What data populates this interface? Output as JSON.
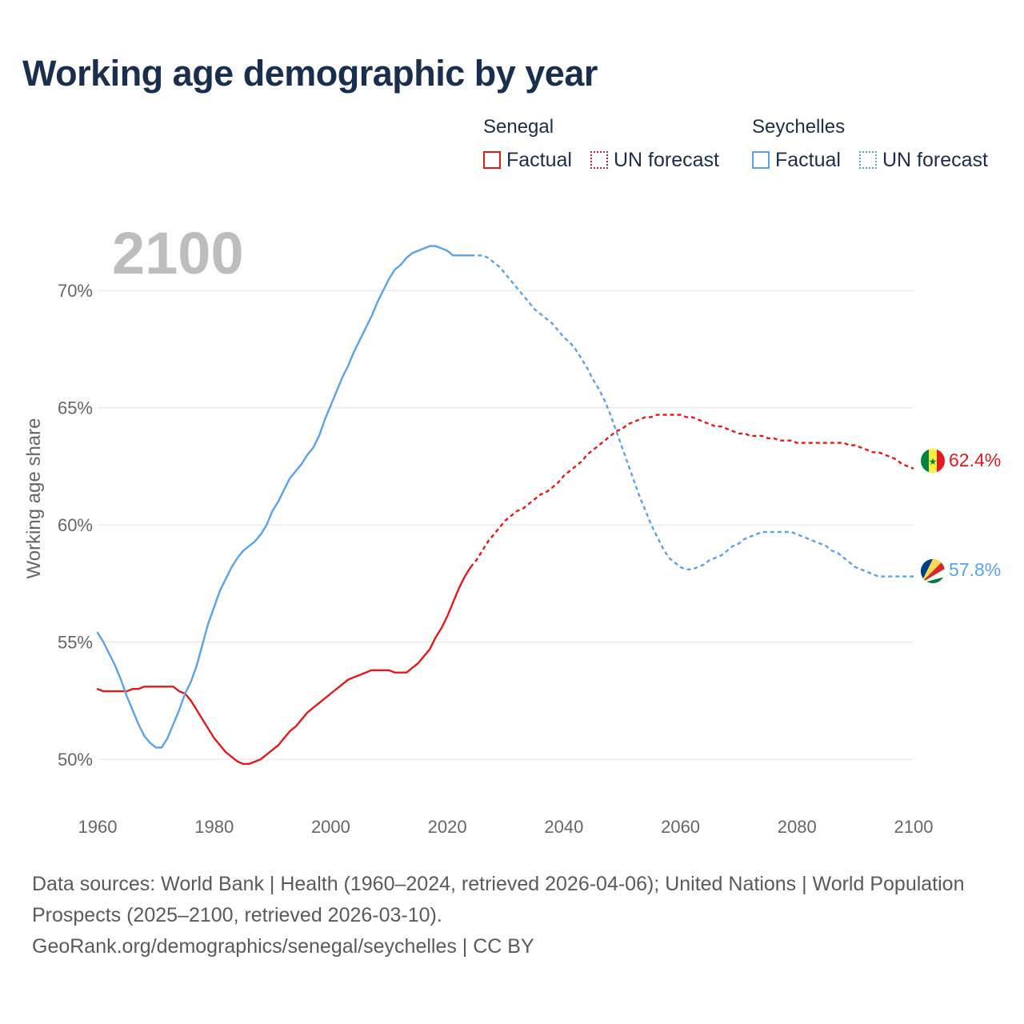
{
  "title": "Working age demographic by year",
  "legend": {
    "groups": [
      {
        "country": "Senegal",
        "color": "#e31a1c",
        "factual_label": "Factual",
        "forecast_label": "UN forecast"
      },
      {
        "country": "Seychelles",
        "color": "#5ba3e6",
        "factual_label": "Factual",
        "forecast_label": "UN forecast"
      }
    ]
  },
  "footer": {
    "sources": "Data sources: World Bank | Health (1960–2024, retrieved 2026-04-06); United Nations | World Population Prospects (2025–2100, retrieved 2026-03-10).",
    "link": "GeoRank.org/demographics/senegal/seychelles | CC BY"
  },
  "chart_data": {
    "type": "line",
    "title": "Working age demographic by year",
    "xlabel": "",
    "ylabel": "Working age share",
    "xlim": [
      1960,
      2100
    ],
    "ylim": [
      48.5,
      72.5
    ],
    "x_ticks": [
      1960,
      1980,
      2000,
      2020,
      2040,
      2060,
      2080,
      2100
    ],
    "y_ticks": [
      50,
      55,
      60,
      65,
      70
    ],
    "y_tick_suffix": "%",
    "grid": true,
    "year_overlay": "2100",
    "series": [
      {
        "name": "Senegal",
        "color": "#e31a1c",
        "end_label": "62.4%",
        "factual": {
          "x": [
            1960,
            1961,
            1962,
            1963,
            1964,
            1965,
            1966,
            1967,
            1968,
            1969,
            1970,
            1971,
            1972,
            1973,
            1974,
            1975,
            1976,
            1977,
            1978,
            1979,
            1980,
            1981,
            1982,
            1983,
            1984,
            1985,
            1986,
            1987,
            1988,
            1989,
            1990,
            1991,
            1992,
            1993,
            1994,
            1995,
            1996,
            1997,
            1998,
            1999,
            2000,
            2001,
            2002,
            2003,
            2004,
            2005,
            2006,
            2007,
            2008,
            2009,
            2010,
            2011,
            2012,
            2013,
            2014,
            2015,
            2016,
            2017,
            2018,
            2019,
            2020,
            2021,
            2022,
            2023,
            2024
          ],
          "y": [
            53.0,
            52.9,
            52.9,
            52.9,
            52.9,
            52.9,
            53.0,
            53.0,
            53.1,
            53.1,
            53.1,
            53.1,
            53.1,
            53.1,
            52.9,
            52.8,
            52.5,
            52.1,
            51.7,
            51.3,
            50.9,
            50.6,
            50.3,
            50.1,
            49.9,
            49.8,
            49.8,
            49.9,
            50.0,
            50.2,
            50.4,
            50.6,
            50.9,
            51.2,
            51.4,
            51.7,
            52.0,
            52.2,
            52.4,
            52.6,
            52.8,
            53.0,
            53.2,
            53.4,
            53.5,
            53.6,
            53.7,
            53.8,
            53.8,
            53.8,
            53.8,
            53.7,
            53.7,
            53.7,
            53.9,
            54.1,
            54.4,
            54.7,
            55.2,
            55.6,
            56.1,
            56.7,
            57.3,
            57.8,
            58.2
          ]
        },
        "forecast": {
          "x": [
            2024,
            2025,
            2026,
            2027,
            2028,
            2029,
            2030,
            2031,
            2032,
            2033,
            2034,
            2035,
            2036,
            2037,
            2038,
            2039,
            2040,
            2041,
            2042,
            2043,
            2044,
            2045,
            2046,
            2047,
            2048,
            2049,
            2050,
            2051,
            2052,
            2053,
            2054,
            2055,
            2056,
            2057,
            2058,
            2059,
            2060,
            2061,
            2062,
            2063,
            2064,
            2065,
            2066,
            2067,
            2068,
            2069,
            2070,
            2071,
            2072,
            2073,
            2074,
            2075,
            2076,
            2077,
            2078,
            2079,
            2080,
            2081,
            2082,
            2083,
            2084,
            2085,
            2086,
            2087,
            2088,
            2089,
            2090,
            2091,
            2092,
            2093,
            2094,
            2095,
            2096,
            2097,
            2098,
            2099,
            2100
          ],
          "y": [
            58.2,
            58.5,
            58.9,
            59.3,
            59.6,
            59.9,
            60.2,
            60.4,
            60.6,
            60.7,
            60.9,
            61.1,
            61.3,
            61.4,
            61.6,
            61.8,
            62.1,
            62.3,
            62.5,
            62.7,
            63.0,
            63.2,
            63.4,
            63.6,
            63.8,
            64.0,
            64.1,
            64.3,
            64.4,
            64.5,
            64.6,
            64.6,
            64.7,
            64.7,
            64.7,
            64.7,
            64.7,
            64.6,
            64.6,
            64.5,
            64.4,
            64.3,
            64.2,
            64.2,
            64.1,
            64.0,
            63.9,
            63.9,
            63.8,
            63.8,
            63.8,
            63.7,
            63.7,
            63.6,
            63.6,
            63.6,
            63.5,
            63.5,
            63.5,
            63.5,
            63.5,
            63.5,
            63.5,
            63.5,
            63.5,
            63.4,
            63.4,
            63.3,
            63.2,
            63.1,
            63.1,
            63.0,
            62.9,
            62.8,
            62.6,
            62.5,
            62.4
          ]
        }
      },
      {
        "name": "Seychelles",
        "color": "#5ba3e6",
        "end_label": "57.8%",
        "factual": {
          "x": [
            1960,
            1961,
            1962,
            1963,
            1964,
            1965,
            1966,
            1967,
            1968,
            1969,
            1970,
            1971,
            1972,
            1973,
            1974,
            1975,
            1976,
            1977,
            1978,
            1979,
            1980,
            1981,
            1982,
            1983,
            1984,
            1985,
            1986,
            1987,
            1988,
            1989,
            1990,
            1991,
            1992,
            1993,
            1994,
            1995,
            1996,
            1997,
            1998,
            1999,
            2000,
            2001,
            2002,
            2003,
            2004,
            2005,
            2006,
            2007,
            2008,
            2009,
            2010,
            2011,
            2012,
            2013,
            2014,
            2015,
            2016,
            2017,
            2018,
            2019,
            2020,
            2021,
            2022,
            2023,
            2024
          ],
          "y": [
            55.4,
            55.0,
            54.5,
            54.0,
            53.4,
            52.7,
            52.1,
            51.5,
            51.0,
            50.7,
            50.5,
            50.5,
            50.9,
            51.5,
            52.1,
            52.8,
            53.3,
            54.0,
            54.9,
            55.8,
            56.5,
            57.2,
            57.7,
            58.2,
            58.6,
            58.9,
            59.1,
            59.3,
            59.6,
            60.0,
            60.6,
            61.0,
            61.5,
            62.0,
            62.3,
            62.6,
            63.0,
            63.3,
            63.8,
            64.5,
            65.1,
            65.7,
            66.3,
            66.8,
            67.4,
            67.9,
            68.4,
            68.9,
            69.5,
            70.0,
            70.5,
            70.9,
            71.1,
            71.4,
            71.6,
            71.7,
            71.8,
            71.9,
            71.9,
            71.8,
            71.7,
            71.5,
            71.5,
            71.5,
            71.5
          ]
        },
        "forecast": {
          "x": [
            2024,
            2025,
            2026,
            2027,
            2028,
            2029,
            2030,
            2031,
            2032,
            2033,
            2034,
            2035,
            2036,
            2037,
            2038,
            2039,
            2040,
            2041,
            2042,
            2043,
            2044,
            2045,
            2046,
            2047,
            2048,
            2049,
            2050,
            2051,
            2052,
            2053,
            2054,
            2055,
            2056,
            2057,
            2058,
            2059,
            2060,
            2061,
            2062,
            2063,
            2064,
            2065,
            2066,
            2067,
            2068,
            2069,
            2070,
            2071,
            2072,
            2073,
            2074,
            2075,
            2076,
            2077,
            2078,
            2079,
            2080,
            2081,
            2082,
            2083,
            2084,
            2085,
            2086,
            2087,
            2088,
            2089,
            2090,
            2091,
            2092,
            2093,
            2094,
            2095,
            2096,
            2097,
            2098,
            2099,
            2100
          ],
          "y": [
            71.5,
            71.5,
            71.5,
            71.4,
            71.2,
            71.0,
            70.7,
            70.4,
            70.1,
            69.8,
            69.5,
            69.2,
            69.0,
            68.8,
            68.6,
            68.3,
            68.0,
            67.8,
            67.5,
            67.1,
            66.7,
            66.2,
            65.8,
            65.3,
            64.7,
            64.0,
            63.3,
            62.6,
            61.9,
            61.2,
            60.6,
            60.0,
            59.5,
            59.0,
            58.6,
            58.4,
            58.2,
            58.1,
            58.1,
            58.2,
            58.3,
            58.5,
            58.6,
            58.7,
            58.9,
            59.1,
            59.2,
            59.4,
            59.5,
            59.6,
            59.7,
            59.7,
            59.7,
            59.7,
            59.7,
            59.7,
            59.6,
            59.5,
            59.4,
            59.3,
            59.2,
            59.1,
            58.9,
            58.8,
            58.6,
            58.4,
            58.2,
            58.1,
            58.0,
            57.9,
            57.8,
            57.8,
            57.8,
            57.8,
            57.8,
            57.8,
            57.8
          ]
        }
      }
    ]
  }
}
